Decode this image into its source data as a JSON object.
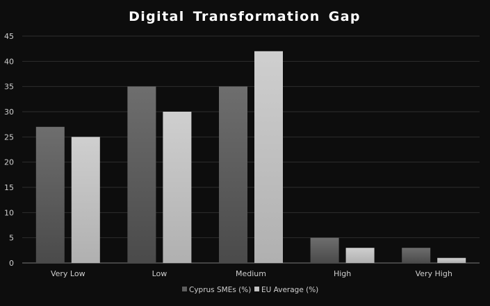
{
  "chart_data": {
    "type": "bar",
    "title": "Digital Transformation Gap",
    "xlabel": "",
    "ylabel": "",
    "categories": [
      "Very Low",
      "Low",
      "Medium",
      "High",
      "Very High"
    ],
    "series": [
      {
        "name": "Cyprus SMEs (%)",
        "values": [
          27,
          35,
          35,
          5,
          3
        ],
        "color": "#5e5e5e"
      },
      {
        "name": "EU Average (%)",
        "values": [
          25,
          30,
          42,
          3,
          1
        ],
        "color": "#c2c2c2"
      }
    ],
    "ylim": [
      0,
      45
    ],
    "yticks": [
      "0",
      "5",
      "10",
      "15",
      "20",
      "25",
      "30",
      "35",
      "40",
      "45"
    ],
    "grid": true,
    "legend_position": "bottom"
  },
  "colors": {
    "background": "#0d0d0d",
    "grid": "#2e2e2e",
    "axis": "#7a7a7a",
    "text": "#cfcfcf",
    "title": "#ffffff"
  }
}
